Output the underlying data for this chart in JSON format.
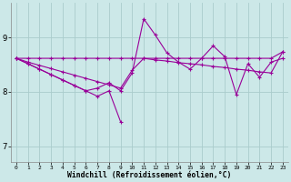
{
  "background_color": "#cce8e8",
  "grid_color": "#aacccc",
  "line_color": "#990099",
  "xlabel": "Windchill (Refroidissement éolien,°C)",
  "yticks": [
    7,
    8,
    9
  ],
  "ylim": [
    6.7,
    9.65
  ],
  "xlim": [
    -0.5,
    23.5
  ],
  "xticks": [
    0,
    1,
    2,
    3,
    4,
    5,
    6,
    7,
    8,
    9,
    10,
    11,
    12,
    13,
    14,
    15,
    16,
    17,
    18,
    19,
    20,
    21,
    22,
    23
  ],
  "line1": [
    8.62,
    8.62,
    8.62,
    8.62,
    8.62,
    8.62,
    8.62,
    8.62,
    8.62,
    8.62,
    8.62,
    8.62,
    8.62,
    8.62,
    8.62,
    8.62,
    8.62,
    8.62,
    8.62,
    8.62,
    8.62,
    8.62,
    8.62,
    8.74
  ],
  "line2": [
    8.62,
    8.55,
    8.49,
    8.43,
    8.37,
    8.31,
    8.25,
    8.19,
    8.13,
    8.07,
    8.4,
    8.62,
    8.59,
    8.57,
    8.54,
    8.52,
    8.5,
    8.47,
    8.45,
    8.42,
    8.4,
    8.37,
    8.35,
    8.74
  ],
  "line3": [
    8.62,
    8.52,
    8.42,
    8.32,
    8.22,
    8.12,
    8.02,
    8.07,
    8.17,
    8.02,
    8.35,
    9.35,
    9.05,
    8.72,
    8.55,
    8.42,
    8.62,
    8.85,
    8.65,
    7.95,
    8.52,
    8.27,
    8.55,
    8.62
  ],
  "line4_x": [
    0,
    1,
    2,
    3,
    4,
    5,
    6,
    7,
    8,
    9
  ],
  "line4_y": [
    8.62,
    8.52,
    8.42,
    8.32,
    8.22,
    8.12,
    8.02,
    7.92,
    8.02,
    7.45
  ]
}
